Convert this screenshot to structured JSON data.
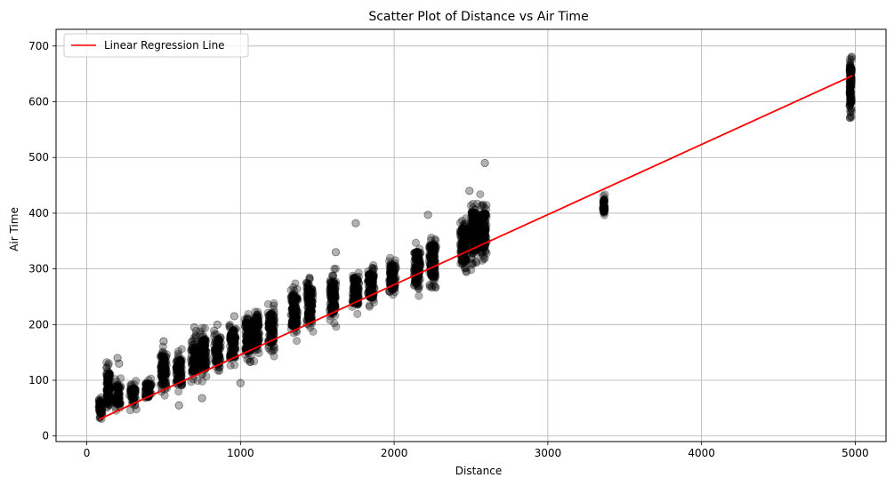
{
  "chart_data": {
    "type": "scatter",
    "title": "Scatter Plot of Distance vs Air Time",
    "xlabel": "Distance",
    "ylabel": "Air Time",
    "xlim": [
      -200,
      5200
    ],
    "ylim": [
      -10,
      730
    ],
    "xticks": [
      0,
      1000,
      2000,
      3000,
      4000,
      5000
    ],
    "yticks": [
      0,
      100,
      200,
      300,
      400,
      500,
      600,
      700
    ],
    "grid": true,
    "legend": {
      "placement": "top-left",
      "entries": [
        "Linear Regression Line"
      ]
    },
    "colors": {
      "points": "#000000",
      "regression_line": "#ff0000",
      "grid": "#b0b0b0"
    },
    "point_alpha": 0.3,
    "clusters": [
      {
        "x": 90,
        "y_min": 20,
        "y_max": 75
      },
      {
        "x": 140,
        "y_min": 30,
        "y_max": 140
      },
      {
        "x": 200,
        "y_min": 40,
        "y_max": 110
      },
      {
        "x": 300,
        "y_min": 45,
        "y_max": 100
      },
      {
        "x": 400,
        "y_min": 55,
        "y_max": 110
      },
      {
        "x": 500,
        "y_min": 65,
        "y_max": 170
      },
      {
        "x": 600,
        "y_min": 75,
        "y_max": 160
      },
      {
        "x": 700,
        "y_min": 90,
        "y_max": 190
      },
      {
        "x": 760,
        "y_min": 95,
        "y_max": 200
      },
      {
        "x": 850,
        "y_min": 105,
        "y_max": 200
      },
      {
        "x": 950,
        "y_min": 115,
        "y_max": 215
      },
      {
        "x": 1050,
        "y_min": 125,
        "y_max": 230
      },
      {
        "x": 1100,
        "y_min": 130,
        "y_max": 240
      },
      {
        "x": 1200,
        "y_min": 140,
        "y_max": 250
      },
      {
        "x": 1350,
        "y_min": 165,
        "y_max": 285
      },
      {
        "x": 1450,
        "y_min": 175,
        "y_max": 295
      },
      {
        "x": 1600,
        "y_min": 190,
        "y_max": 305
      },
      {
        "x": 1750,
        "y_min": 210,
        "y_max": 310
      },
      {
        "x": 1850,
        "y_min": 225,
        "y_max": 315
      },
      {
        "x": 1990,
        "y_min": 240,
        "y_max": 330
      },
      {
        "x": 2150,
        "y_min": 245,
        "y_max": 360
      },
      {
        "x": 2250,
        "y_min": 255,
        "y_max": 375
      },
      {
        "x": 2450,
        "y_min": 280,
        "y_max": 410
      },
      {
        "x": 2520,
        "y_min": 290,
        "y_max": 440
      },
      {
        "x": 2580,
        "y_min": 300,
        "y_max": 435
      },
      {
        "x": 3365,
        "y_min": 388,
        "y_max": 435
      },
      {
        "x": 4970,
        "y_min": 565,
        "y_max": 695
      }
    ],
    "outliers": [
      {
        "x": 200,
        "y": 140
      },
      {
        "x": 210,
        "y": 130
      },
      {
        "x": 500,
        "y": 170
      },
      {
        "x": 700,
        "y": 195
      },
      {
        "x": 850,
        "y": 200
      },
      {
        "x": 960,
        "y": 215
      },
      {
        "x": 1750,
        "y": 382
      },
      {
        "x": 1620,
        "y": 330
      },
      {
        "x": 2220,
        "y": 397
      },
      {
        "x": 2490,
        "y": 440
      },
      {
        "x": 2590,
        "y": 490
      },
      {
        "x": 1000,
        "y": 95
      },
      {
        "x": 750,
        "y": 68
      },
      {
        "x": 600,
        "y": 55
      }
    ],
    "regression_line": {
      "name": "Linear Regression Line",
      "x": [
        80,
        4983
      ],
      "y": [
        30,
        647
      ]
    }
  }
}
